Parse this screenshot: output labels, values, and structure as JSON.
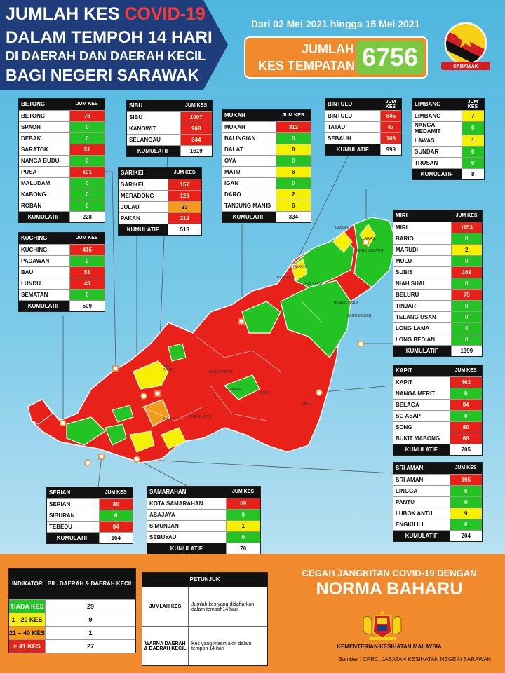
{
  "header": {
    "title_line1_prefix": "JUMLAH KES ",
    "title_line1_highlight": "COVID-19",
    "title_line2": "DALAM TEMPOH 14 HARI",
    "title_line3": "DI DAERAH DAN DAERAH KECIL",
    "title_line4": "BAGI NEGERI SARAWAK",
    "date_range": "Dari 02 Mei 2021 hingga 15 Mei 2021",
    "total_label1": "JUMLAH",
    "total_label2": "KES TEMPATAN",
    "total_value": "6756",
    "logo_text": "SARAWAK",
    "logo_icon": "sarawak-flag-icon"
  },
  "colors": {
    "red": "#e8211b",
    "green": "#22c322",
    "yellow": "#f4f000",
    "orange": "#f29b1c",
    "navy": "#1f3d7a",
    "sky": "#4fb6de"
  },
  "divisions": [
    {
      "id": "betong",
      "name": "BETONG",
      "header_label": "JUM KES",
      "districts": [
        {
          "name": "BETONG",
          "value": "76",
          "color": "red"
        },
        {
          "name": "SPAOH",
          "value": "0",
          "color": "green"
        },
        {
          "name": "DEBAK",
          "value": "0",
          "color": "green"
        },
        {
          "name": "SARATOK",
          "value": "51",
          "color": "red"
        },
        {
          "name": "NANGA BUDU",
          "value": "0",
          "color": "green"
        },
        {
          "name": "PUSA",
          "value": "101",
          "color": "red"
        },
        {
          "name": "MALUDAM",
          "value": "0",
          "color": "green"
        },
        {
          "name": "KABONG",
          "value": "0",
          "color": "green"
        },
        {
          "name": "ROBAN",
          "value": "0",
          "color": "green"
        }
      ],
      "total_label": "KUMULATIF",
      "total": "228"
    },
    {
      "id": "kuching",
      "name": "KUCHING",
      "header_label": "JUM KES",
      "districts": [
        {
          "name": "KUCHING",
          "value": "415",
          "color": "red"
        },
        {
          "name": "PADAWAN",
          "value": "0",
          "color": "green"
        },
        {
          "name": "BAU",
          "value": "51",
          "color": "red"
        },
        {
          "name": "LUNDU",
          "value": "43",
          "color": "red"
        },
        {
          "name": "SEMATAN",
          "value": "0",
          "color": "green"
        }
      ],
      "total_label": "KUMULATIF",
      "total": "509"
    },
    {
      "id": "sibu",
      "name": "SIBU",
      "header_label": "JUM KES",
      "districts": [
        {
          "name": "SIBU",
          "value": "1007",
          "color": "red"
        },
        {
          "name": "KANOWIT",
          "value": "268",
          "color": "red"
        },
        {
          "name": "SELANGAU",
          "value": "344",
          "color": "red"
        }
      ],
      "total_label": "KUMULATIF",
      "total": "1619"
    },
    {
      "id": "sarikei",
      "name": "SARIKEI",
      "header_label": "JUM KES",
      "districts": [
        {
          "name": "SARIKEI",
          "value": "157",
          "color": "red"
        },
        {
          "name": "MERADONG",
          "value": "126",
          "color": "red"
        },
        {
          "name": "JULAU",
          "value": "23",
          "color": "orange"
        },
        {
          "name": "PAKAN",
          "value": "212",
          "color": "red"
        }
      ],
      "total_label": "KUMULATIF",
      "total": "518"
    },
    {
      "id": "mukah",
      "name": "MUKAH",
      "header_label": "JUM KES",
      "districts": [
        {
          "name": "MUKAH",
          "value": "312",
          "color": "red"
        },
        {
          "name": "BALINGIAN",
          "value": "0",
          "color": "green"
        },
        {
          "name": "DALAT",
          "value": "8",
          "color": "yellow"
        },
        {
          "name": "OYA",
          "value": "0",
          "color": "green"
        },
        {
          "name": "MATU",
          "value": "6",
          "color": "yellow"
        },
        {
          "name": "IGAN",
          "value": "0",
          "color": "green"
        },
        {
          "name": "DARO",
          "value": "2",
          "color": "yellow"
        },
        {
          "name": "TANJUNG MANIS",
          "value": "6",
          "color": "yellow"
        }
      ],
      "total_label": "KUMULATIF",
      "total": "334"
    },
    {
      "id": "bintulu",
      "name": "BINTULU",
      "header_label": "JUM KES",
      "districts": [
        {
          "name": "BINTULU",
          "value": "845",
          "color": "red"
        },
        {
          "name": "TATAU",
          "value": "47",
          "color": "red"
        },
        {
          "name": "SEBAUH",
          "value": "106",
          "color": "red"
        }
      ],
      "total_label": "KUMULATIF",
      "total": "998"
    },
    {
      "id": "limbang",
      "name": "LIMBANG",
      "header_label": "JUM KES",
      "districts": [
        {
          "name": "LIMBANG",
          "value": "7",
          "color": "yellow"
        },
        {
          "name": "NANGA MEDAMIT",
          "value": "0",
          "color": "green"
        },
        {
          "name": "LAWAS",
          "value": "1",
          "color": "yellow"
        },
        {
          "name": "SUNDAR",
          "value": "0",
          "color": "green"
        },
        {
          "name": "TRUSAN",
          "value": "0",
          "color": "green"
        }
      ],
      "total_label": "KUMULATIF",
      "total": "8"
    },
    {
      "id": "miri",
      "name": "MIRI",
      "header_label": "JUM KES",
      "districts": [
        {
          "name": "MIRI",
          "value": "1153",
          "color": "red"
        },
        {
          "name": "BARIO",
          "value": "0",
          "color": "green"
        },
        {
          "name": "MARUDI",
          "value": "2",
          "color": "yellow"
        },
        {
          "name": "MULU",
          "value": "0",
          "color": "green"
        },
        {
          "name": "SUBIS",
          "value": "169",
          "color": "red"
        },
        {
          "name": "NIAH SUAI",
          "value": "0",
          "color": "green"
        },
        {
          "name": "BELURU",
          "value": "75",
          "color": "red"
        },
        {
          "name": "TINJAR",
          "value": "0",
          "color": "green"
        },
        {
          "name": "TELANG USAN",
          "value": "0",
          "color": "green"
        },
        {
          "name": "LONG LAMA",
          "value": "0",
          "color": "green"
        },
        {
          "name": "LONG BEDIAN",
          "value": "0",
          "color": "green"
        }
      ],
      "total_label": "KUMULATIF",
      "total": "1399"
    },
    {
      "id": "kapit",
      "name": "KAPIT",
      "header_label": "JUM KES",
      "districts": [
        {
          "name": "KAPIT",
          "value": "462",
          "color": "red"
        },
        {
          "name": "NANGA MERIT",
          "value": "0",
          "color": "green"
        },
        {
          "name": "BELAGA",
          "value": "94",
          "color": "red"
        },
        {
          "name": "SG ASAP",
          "value": "0",
          "color": "green"
        },
        {
          "name": "SONG",
          "value": "80",
          "color": "red"
        },
        {
          "name": "BUKIT MABONG",
          "value": "69",
          "color": "red"
        }
      ],
      "total_label": "KUMULATIF",
      "total": "705"
    },
    {
      "id": "sriaman",
      "name": "SRI AMAN",
      "header_label": "JUM KES",
      "districts": [
        {
          "name": "SRI AMAN",
          "value": "195",
          "color": "red"
        },
        {
          "name": "LINGGA",
          "value": "0",
          "color": "green"
        },
        {
          "name": "PANTU",
          "value": "0",
          "color": "green"
        },
        {
          "name": "LUBOK ANTU",
          "value": "9",
          "color": "yellow"
        },
        {
          "name": "ENGKILILI",
          "value": "0",
          "color": "green"
        }
      ],
      "total_label": "KUMULATIF",
      "total": "204"
    },
    {
      "id": "serian",
      "name": "SERIAN",
      "header_label": "JUM KES",
      "districts": [
        {
          "name": "SERIAN",
          "value": "80",
          "color": "red"
        },
        {
          "name": "SIBURAN",
          "value": "0",
          "color": "green"
        },
        {
          "name": "TEBEDU",
          "value": "84",
          "color": "red"
        }
      ],
      "total_label": "KUMULATIF",
      "total": "164"
    },
    {
      "id": "samarahan",
      "name": "SAMARAHAN",
      "header_label": "JUM KES",
      "districts": [
        {
          "name": "KOTA SAMARAHAN",
          "value": "69",
          "color": "red"
        },
        {
          "name": "ASAJAYA",
          "value": "0",
          "color": "green"
        },
        {
          "name": "SIMUNJAN",
          "value": "1",
          "color": "yellow"
        },
        {
          "name": "SEBUYAU",
          "value": "0",
          "color": "green"
        }
      ],
      "total_label": "KUMULATIF",
      "total": "70"
    }
  ],
  "indicator": {
    "col1": "INDIKATOR",
    "col2": "BIL. DAERAH & DAERAH KECIL",
    "rows": [
      {
        "label": "TIADA KES",
        "count": "29",
        "color": "green"
      },
      {
        "label": "1 - 20 KES",
        "count": "9",
        "color": "yellow"
      },
      {
        "label": "21 – 40 KES",
        "count": "1",
        "color": "orange"
      },
      {
        "label": "≥ 41 KES",
        "count": "27",
        "color": "red"
      }
    ]
  },
  "petunjuk": {
    "title": "PETUNJUK",
    "rows": [
      {
        "key": "JUMLAH KES",
        "desc": "Jumlah kes yang didaftarkan dalam tempoh14 hari"
      },
      {
        "key": "WARNA DAERAH & DAERAH KECIL",
        "desc": "Kes yang masih aktif dalam tempoh 14 hari"
      }
    ]
  },
  "footer": {
    "slogan_top": "CEGAH JANGKITAN COVID-19 DENGAN",
    "slogan_main": "NORMA BAHARU",
    "ministry": "KEMENTERIAN KESIHATAN MALAYSIA",
    "source": "Sumber : CPRC, JABATAN KESIHATAN NEGERI SARAWAK",
    "crest_icon": "malaysia-coat-of-arms-icon"
  },
  "map_labels": [
    {
      "text": "LIMBANG"
    },
    {
      "text": "LAWAS"
    },
    {
      "text": "NANGA MEDAMIT"
    },
    {
      "text": "MARUDI"
    },
    {
      "text": "LONG LAMA"
    },
    {
      "text": "TELANG USAN"
    },
    {
      "text": "LONG BEDIAN"
    },
    {
      "text": "SG ASAP"
    },
    {
      "text": "BELAGA"
    },
    {
      "text": "KAPIT"
    },
    {
      "text": "SONG"
    },
    {
      "text": "NANGA MERIT"
    },
    {
      "text": "LUBOK ANTU"
    },
    {
      "text": "JULAU"
    },
    {
      "text": "SIBU"
    },
    {
      "text": "DALAT"
    }
  ]
}
